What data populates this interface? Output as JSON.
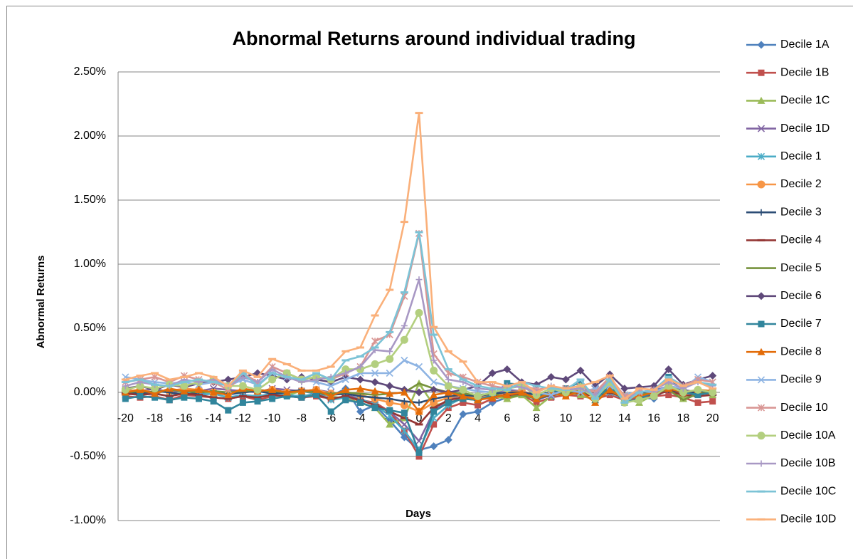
{
  "chart_data": {
    "type": "line",
    "title": "Abnormal Returns around individual trading",
    "x_label": "Days",
    "y_label": "Abnormal Returns",
    "categories": [
      "-20",
      null,
      "-18",
      null,
      "-16",
      null,
      "-14",
      null,
      "-12",
      null,
      "-10",
      null,
      "-8",
      null,
      "-6",
      null,
      "-4",
      null,
      "-2",
      null,
      "0",
      null,
      "2",
      null,
      "4",
      null,
      "6",
      null,
      "8",
      null,
      "10",
      null,
      "12",
      null,
      "14",
      null,
      "16",
      null,
      "18",
      null,
      "20"
    ],
    "ylim": [
      -1.0,
      2.5
    ],
    "yticks": [
      {
        "value": -1.0,
        "label": "-1.00%"
      },
      {
        "value": -0.5,
        "label": "-0.50%"
      },
      {
        "value": 0,
        "label": "0.00%"
      },
      {
        "value": 0.5,
        "label": "0.50%"
      },
      {
        "value": 1.0,
        "label": "1.00%"
      },
      {
        "value": 1.5,
        "label": "1.50%"
      },
      {
        "value": 2.0,
        "label": "2.00%"
      },
      {
        "value": 2.5,
        "label": "2.50%"
      }
    ],
    "grid": true,
    "legend": "right",
    "series": [
      {
        "name": "Decile 1A",
        "color": "#4F81BD",
        "marker": "diamond",
        "values": [
          0.01,
          0.0,
          -0.01,
          0.02,
          0.0,
          -0.01,
          0.01,
          -0.02,
          0.0,
          0.01,
          0.02,
          0.0,
          0.01,
          -0.01,
          -0.03,
          0.03,
          -0.15,
          -0.1,
          -0.22,
          -0.35,
          -0.45,
          -0.42,
          -0.37,
          -0.17,
          -0.15,
          -0.08,
          -0.04,
          0.0,
          -0.06,
          -0.02,
          0.01,
          0.0,
          -0.03,
          0.02,
          -0.06,
          -0.04,
          -0.05,
          0.04,
          0.0,
          0.01,
          0.0
        ]
      },
      {
        "name": "Decile 1B",
        "color": "#C0504D",
        "marker": "square",
        "values": [
          -0.03,
          -0.04,
          -0.03,
          -0.06,
          -0.02,
          -0.03,
          -0.04,
          -0.05,
          -0.03,
          -0.06,
          -0.03,
          -0.02,
          -0.04,
          -0.03,
          -0.05,
          -0.04,
          -0.06,
          -0.08,
          -0.15,
          -0.3,
          -0.5,
          -0.25,
          -0.12,
          -0.08,
          -0.1,
          -0.05,
          -0.03,
          -0.02,
          -0.08,
          -0.04,
          -0.02,
          -0.03,
          -0.05,
          -0.02,
          -0.06,
          -0.04,
          -0.03,
          -0.02,
          -0.04,
          -0.08,
          -0.07
        ]
      },
      {
        "name": "Decile 1C",
        "color": "#9BBB59",
        "marker": "triangle",
        "values": [
          0.0,
          0.01,
          -0.01,
          0.02,
          0.0,
          0.01,
          -0.01,
          0.0,
          0.02,
          0.01,
          0.0,
          -0.02,
          0.01,
          0.0,
          -0.03,
          -0.05,
          -0.08,
          -0.12,
          -0.25,
          -0.2,
          0.07,
          -0.1,
          -0.08,
          -0.05,
          -0.06,
          -0.03,
          -0.05,
          -0.02,
          -0.12,
          -0.03,
          0.0,
          -0.02,
          -0.06,
          0.01,
          -0.05,
          -0.08,
          -0.02,
          0.03,
          -0.05,
          0.0,
          -0.02
        ]
      },
      {
        "name": "Decile 1D",
        "color": "#8064A2",
        "marker": "x",
        "values": [
          0.02,
          0.01,
          0.03,
          0.0,
          0.02,
          0.01,
          0.03,
          0.02,
          0.01,
          0.0,
          0.03,
          0.02,
          0.01,
          0.02,
          0.0,
          -0.02,
          -0.05,
          -0.1,
          -0.15,
          -0.25,
          -0.38,
          -0.15,
          -0.05,
          -0.02,
          -0.04,
          0.0,
          0.02,
          0.01,
          -0.02,
          -0.03,
          0.01,
          0.02,
          0.0,
          0.03,
          -0.02,
          0.0,
          0.01,
          0.05,
          0.02,
          0.0,
          0.01
        ]
      },
      {
        "name": "Decile 1",
        "color": "#4BACC6",
        "marker": "star",
        "values": [
          -0.02,
          0.0,
          -0.01,
          -0.03,
          0.0,
          -0.02,
          -0.01,
          -0.04,
          -0.02,
          -0.03,
          -0.01,
          -0.02,
          -0.03,
          -0.01,
          -0.06,
          -0.04,
          -0.05,
          -0.1,
          -0.18,
          -0.3,
          -0.45,
          -0.2,
          -0.1,
          -0.04,
          -0.06,
          -0.02,
          0.0,
          -0.01,
          -0.04,
          -0.02,
          0.0,
          0.01,
          -0.02,
          0.0,
          -0.05,
          -0.03,
          -0.01,
          0.02,
          0.0,
          -0.01,
          0.0
        ]
      },
      {
        "name": "Decile 2",
        "color": "#F79646",
        "marker": "circle",
        "values": [
          0.01,
          0.02,
          0.0,
          0.01,
          0.03,
          0.02,
          0.0,
          -0.01,
          0.02,
          0.01,
          0.02,
          0.0,
          0.01,
          0.02,
          -0.01,
          0.0,
          -0.02,
          -0.05,
          -0.08,
          -0.1,
          -0.15,
          -0.08,
          -0.04,
          -0.02,
          -0.05,
          -0.02,
          0.0,
          0.01,
          -0.03,
          0.0,
          0.01,
          0.02,
          0.0,
          0.02,
          -0.03,
          0.0,
          0.01,
          0.03,
          0.0,
          0.01,
          0.0
        ]
      },
      {
        "name": "Decile 3",
        "color": "#2C4D75",
        "marker": "plus",
        "values": [
          0.0,
          -0.01,
          0.01,
          0.0,
          -0.02,
          0.0,
          0.01,
          -0.01,
          0.0,
          0.01,
          -0.01,
          0.0,
          0.02,
          0.0,
          -0.02,
          -0.01,
          -0.03,
          -0.04,
          -0.05,
          -0.07,
          -0.08,
          -0.05,
          -0.03,
          -0.02,
          -0.03,
          -0.01,
          0.0,
          0.0,
          -0.02,
          0.0,
          0.01,
          0.0,
          -0.01,
          0.01,
          -0.02,
          0.0,
          0.0,
          0.02,
          0.0,
          0.0,
          0.01
        ]
      },
      {
        "name": "Decile 4",
        "color": "#943634",
        "marker": "dash",
        "values": [
          -0.01,
          -0.02,
          -0.01,
          -0.03,
          -0.01,
          -0.02,
          -0.04,
          -0.05,
          -0.03,
          -0.04,
          -0.02,
          -0.03,
          -0.04,
          -0.02,
          -0.05,
          -0.03,
          -0.06,
          -0.1,
          -0.15,
          -0.2,
          -0.25,
          -0.12,
          -0.06,
          -0.04,
          -0.06,
          -0.03,
          -0.02,
          -0.01,
          -0.05,
          -0.02,
          0.0,
          -0.01,
          -0.03,
          0.0,
          -0.04,
          -0.03,
          -0.02,
          0.01,
          -0.02,
          -0.03,
          -0.02
        ]
      },
      {
        "name": "Decile 5",
        "color": "#76923C",
        "marker": "none",
        "values": [
          0.0,
          0.01,
          0.0,
          0.02,
          0.01,
          0.0,
          0.01,
          0.0,
          0.01,
          0.02,
          0.01,
          0.0,
          0.01,
          0.0,
          -0.01,
          0.0,
          -0.01,
          -0.02,
          -0.01,
          0.0,
          0.07,
          0.03,
          0.0,
          -0.01,
          -0.02,
          -0.01,
          -0.04,
          -0.02,
          -0.05,
          -0.01,
          0.0,
          0.01,
          -0.02,
          0.01,
          -0.04,
          -0.02,
          0.0,
          0.02,
          -0.06,
          -0.01,
          0.0
        ]
      },
      {
        "name": "Decile 6",
        "color": "#5F497A",
        "marker": "diamond",
        "values": [
          0.03,
          0.05,
          0.02,
          0.06,
          0.04,
          0.07,
          0.08,
          0.1,
          0.12,
          0.15,
          0.13,
          0.1,
          0.12,
          0.1,
          0.08,
          0.12,
          0.1,
          0.08,
          0.05,
          0.02,
          0.0,
          0.02,
          0.0,
          0.02,
          0.05,
          0.15,
          0.18,
          0.08,
          0.06,
          0.12,
          0.1,
          0.17,
          0.05,
          0.14,
          0.03,
          0.04,
          0.05,
          0.18,
          0.06,
          0.1,
          0.13
        ]
      },
      {
        "name": "Decile 7",
        "color": "#31859C",
        "marker": "square",
        "values": [
          -0.05,
          -0.03,
          -0.04,
          -0.06,
          -0.04,
          -0.05,
          -0.07,
          -0.14,
          -0.08,
          -0.07,
          -0.05,
          -0.03,
          -0.04,
          -0.02,
          -0.15,
          -0.06,
          -0.08,
          -0.12,
          -0.14,
          -0.16,
          -0.47,
          -0.15,
          -0.08,
          -0.05,
          -0.06,
          -0.02,
          0.07,
          0.06,
          -0.03,
          0.0,
          0.03,
          0.08,
          -0.06,
          0.05,
          -0.08,
          -0.05,
          0.0,
          0.12,
          0.0,
          -0.02,
          0.0
        ]
      },
      {
        "name": "Decile 8",
        "color": "#E36C09",
        "marker": "triangle",
        "values": [
          0.0,
          0.02,
          -0.01,
          0.03,
          0.01,
          0.02,
          0.0,
          -0.02,
          0.03,
          0.01,
          0.02,
          0.0,
          0.01,
          0.02,
          -0.03,
          0.02,
          0.03,
          0.01,
          -0.01,
          0.0,
          -0.15,
          -0.02,
          0.0,
          -0.03,
          -0.06,
          -0.04,
          -0.02,
          0.0,
          -0.05,
          0.0,
          -0.03,
          0.01,
          -0.08,
          0.02,
          -0.05,
          -0.03,
          0.0,
          0.03,
          0.0,
          0.02,
          0.01
        ]
      },
      {
        "name": "Decile 9",
        "color": "#8EB4E3",
        "marker": "x",
        "values": [
          0.12,
          0.1,
          0.08,
          0.07,
          0.08,
          0.06,
          0.08,
          0.05,
          0.1,
          0.06,
          0.15,
          0.12,
          0.1,
          0.08,
          0.05,
          0.1,
          0.15,
          0.15,
          0.15,
          0.25,
          0.2,
          0.08,
          0.05,
          0.03,
          0.01,
          0.0,
          0.03,
          0.05,
          0.0,
          -0.02,
          0.02,
          0.0,
          0.03,
          0.05,
          -0.02,
          0.01,
          0.0,
          0.05,
          0.03,
          0.12,
          0.08
        ]
      },
      {
        "name": "Decile 10",
        "color": "#D99694",
        "marker": "star",
        "values": [
          0.08,
          0.1,
          0.12,
          0.08,
          0.13,
          0.1,
          0.08,
          0.02,
          0.15,
          0.08,
          0.2,
          0.15,
          0.1,
          0.12,
          0.1,
          0.15,
          0.2,
          0.4,
          0.45,
          0.75,
          1.24,
          0.3,
          0.15,
          0.12,
          0.08,
          0.05,
          0.03,
          0.06,
          0.02,
          0.04,
          0.03,
          0.05,
          0.0,
          0.12,
          -0.03,
          0.0,
          0.02,
          0.1,
          0.05,
          0.1,
          0.08
        ]
      },
      {
        "name": "Decile 10A",
        "color": "#B3CF7F",
        "marker": "circle",
        "values": [
          0.02,
          0.05,
          0.03,
          0.06,
          0.05,
          0.08,
          0.1,
          0.05,
          0.05,
          0.02,
          0.1,
          0.15,
          0.1,
          0.12,
          0.1,
          0.18,
          0.18,
          0.22,
          0.26,
          0.41,
          0.62,
          0.17,
          0.05,
          0.02,
          -0.03,
          0.0,
          0.03,
          0.05,
          -0.02,
          0.03,
          0.0,
          0.04,
          -0.05,
          0.08,
          -0.08,
          -0.06,
          -0.03,
          0.05,
          0.0,
          0.02,
          0.0
        ]
      },
      {
        "name": "Decile 10B",
        "color": "#A898C4",
        "marker": "plus",
        "values": [
          0.05,
          0.08,
          0.06,
          0.05,
          0.1,
          0.08,
          0.1,
          0.05,
          0.12,
          0.08,
          0.18,
          0.12,
          0.08,
          0.1,
          0.12,
          0.15,
          0.2,
          0.33,
          0.32,
          0.52,
          0.88,
          0.25,
          0.1,
          0.08,
          0.03,
          0.02,
          0.05,
          0.04,
          0.0,
          0.05,
          0.02,
          0.03,
          -0.02,
          0.1,
          -0.05,
          0.0,
          0.02,
          0.08,
          0.03,
          0.08,
          0.05
        ]
      },
      {
        "name": "Decile 10C",
        "color": "#7CC3D6",
        "marker": "dash",
        "values": [
          0.08,
          0.1,
          0.06,
          0.05,
          0.08,
          0.1,
          0.08,
          0.05,
          0.15,
          0.05,
          0.15,
          0.12,
          0.1,
          0.15,
          0.1,
          0.25,
          0.28,
          0.35,
          0.47,
          0.78,
          1.25,
          0.45,
          0.18,
          0.1,
          0.05,
          0.03,
          0.02,
          0.08,
          0.05,
          0.03,
          0.02,
          0.1,
          -0.05,
          0.1,
          -0.08,
          0.0,
          0.02,
          0.12,
          0.05,
          0.08,
          0.06
        ]
      },
      {
        "name": "Decile 10D",
        "color": "#FAB07A",
        "marker": "dash",
        "values": [
          0.1,
          0.13,
          0.15,
          0.1,
          0.12,
          0.15,
          0.12,
          0.05,
          0.17,
          0.12,
          0.26,
          0.22,
          0.17,
          0.17,
          0.2,
          0.32,
          0.35,
          0.6,
          0.8,
          1.33,
          2.18,
          0.51,
          0.32,
          0.24,
          0.08,
          0.08,
          0.05,
          0.08,
          0.0,
          0.05,
          0.03,
          0.05,
          0.08,
          0.13,
          -0.05,
          0.03,
          0.02,
          0.1,
          0.05,
          0.08,
          0.03
        ]
      }
    ]
  }
}
